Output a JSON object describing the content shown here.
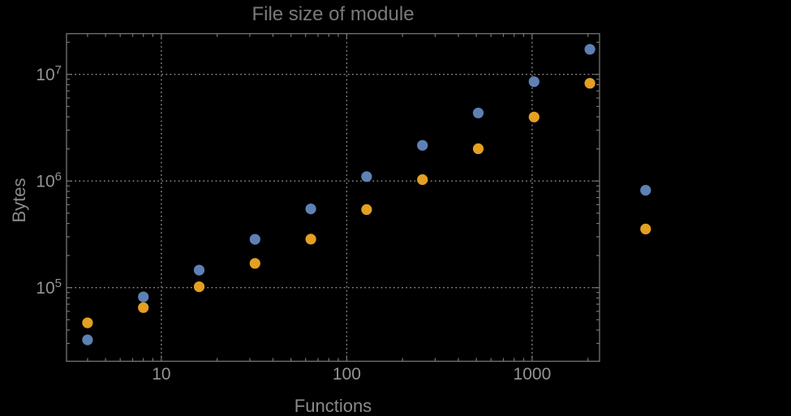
{
  "title": "File size of module",
  "chart_data": {
    "type": "scatter",
    "title": "File size of module",
    "xlabel": "Functions",
    "ylabel": "Bytes",
    "x_scale": "log",
    "y_scale": "log",
    "xlim": [
      3.08,
      2310
    ],
    "ylim": [
      20400,
      24100000
    ],
    "x_ticks": [
      10,
      100,
      1000
    ],
    "y_ticks": [
      100000,
      1000000,
      10000000
    ],
    "grid": "dotted lines at decade ticks",
    "legend_position": "none",
    "note": "two points plotted outside right frame edge (x=4096 pair)",
    "x": [
      4,
      8,
      16,
      32,
      64,
      128,
      256,
      512,
      1024,
      2048,
      4096
    ],
    "series": [
      {
        "name": "series-1-blue",
        "color": "#5E81B5",
        "values": [
          32400,
          82000,
          146000,
          284000,
          548000,
          1100000,
          2160000,
          4350000,
          8550000,
          17200000,
          820000
        ]
      },
      {
        "name": "series-2-orange",
        "color": "#E3A022",
        "values": [
          46800,
          65000,
          102000,
          169000,
          285000,
          540000,
          1030000,
          2010000,
          3980000,
          8250000,
          355000
        ]
      }
    ]
  },
  "style": {
    "background": "#000000",
    "frame_color": "#757575",
    "grid_color": "#8A8A8A",
    "tick_label_color": "#949494",
    "axis_label_color": "#8A8A8A",
    "title_color": "#7A7A7A"
  }
}
